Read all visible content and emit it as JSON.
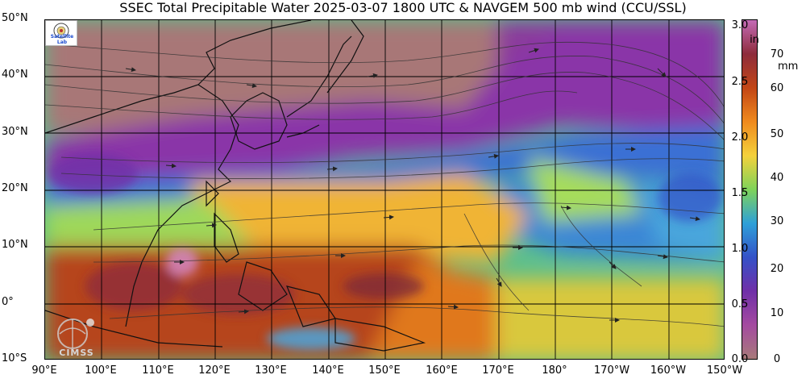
{
  "title": "SSEC Total Precipitable Water  2025-03-07 1800 UTC & NAVGEM 500 mb wind (CCU/SSL)",
  "latitude_labels": [
    "50°N",
    "40°N",
    "30°N",
    "20°N",
    "10°N",
    "0°",
    "10°S"
  ],
  "longitude_labels": [
    "90°E",
    "100°E",
    "110°E",
    "120°E",
    "130°E",
    "140°E",
    "150°E",
    "160°E",
    "170°E",
    "180°",
    "170°W",
    "160°W",
    "150°W"
  ],
  "colorbar": {
    "inch_unit": "in",
    "mm_unit": "mm",
    "inch_ticks": [
      "3.0",
      "2.5",
      "2.0",
      "1.5",
      "1.0",
      "0.5",
      "0.0"
    ],
    "mm_ticks": [
      "70",
      "60",
      "50",
      "40",
      "30",
      "20",
      "10",
      "0"
    ],
    "colors": [
      "#c46bb6",
      "#8e2c3c",
      "#c24616",
      "#ef8a1e",
      "#f4d13c",
      "#7fd35a",
      "#2ea0d8",
      "#3452c8",
      "#7030a8",
      "#a44aa0",
      "#a87a7a"
    ]
  },
  "logos": {
    "top_left_text": "Satellite Lab",
    "bottom_left_text": "CIMSS"
  }
}
